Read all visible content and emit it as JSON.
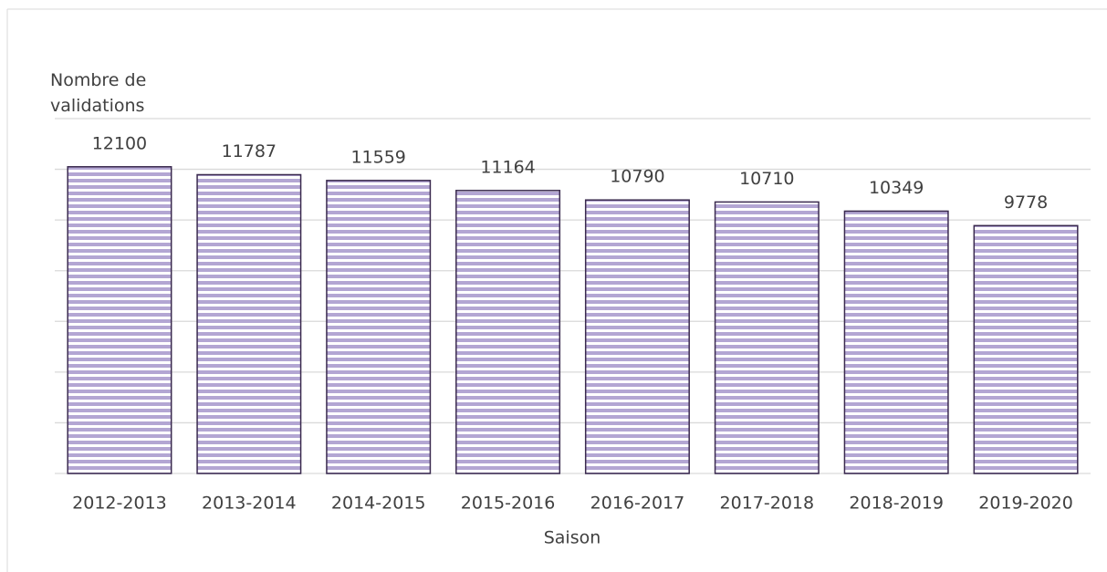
{
  "chart_data": {
    "type": "bar",
    "y_label": "Nombre de validations",
    "x_label": "Saison",
    "categories": [
      "2012-2013",
      "2013-2014",
      "2014-2015",
      "2015-2016",
      "2016-2017",
      "2017-2018",
      "2018-2019",
      "2019-2020"
    ],
    "values": [
      12100,
      11787,
      11559,
      11164,
      10790,
      10710,
      10349,
      9778
    ],
    "color": "#b3a6d3",
    "edge_color": "#3a2a4e",
    "ylim": [
      0,
      14000
    ],
    "yticks": [
      0,
      2000,
      4000,
      6000,
      8000,
      10000,
      12000,
      14000
    ],
    "grid": true
  }
}
